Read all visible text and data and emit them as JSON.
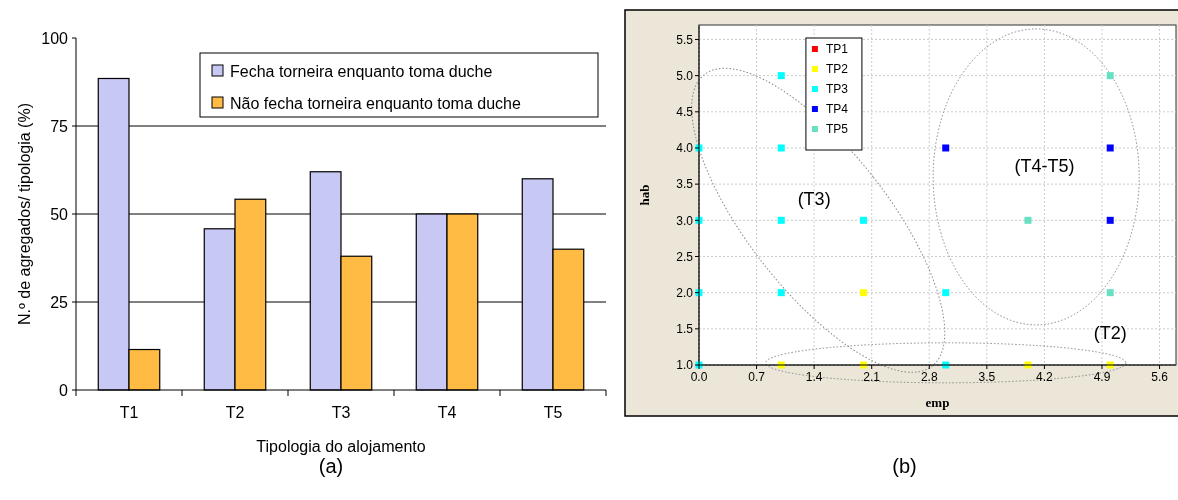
{
  "chart_data": [
    {
      "type": "bar",
      "title": "(a)",
      "xlabel": "Tipologia do alojamento",
      "ylabel": "N.º de agregados/ tipologia  (%)",
      "categories": [
        "T1",
        "T2",
        "T3",
        "T4",
        "T5"
      ],
      "series": [
        {
          "name": "Fecha torneira enquanto toma duche",
          "color": "#c8c8f5",
          "values": [
            88.5,
            45.8,
            62,
            50,
            60
          ]
        },
        {
          "name": "Não fecha torneira enquanto toma duche",
          "color": "#ffbb44",
          "values": [
            11.5,
            54.2,
            38,
            50,
            40
          ]
        }
      ],
      "ylim": [
        0,
        100
      ],
      "yticks": [
        0,
        25,
        50,
        75,
        100
      ],
      "grid": "y",
      "legend": "top right"
    },
    {
      "type": "scatter",
      "title": "(b)",
      "xlabel": "emp",
      "ylabel": "hab",
      "marker": "square",
      "grid": true,
      "legend": "top left",
      "xlim": [
        0,
        5.8
      ],
      "xticks": [
        {
          "value": 0,
          "label": "0.0"
        },
        0.7,
        1.4,
        2.1,
        2.8,
        3.5,
        4.2,
        4.9,
        5.6
      ],
      "ylim": [
        1,
        5.7
      ],
      "yticks": [
        {
          "value": 1,
          "label": "1.0"
        },
        1.5,
        {
          "value": 2,
          "label": "2.0"
        },
        2.5,
        {
          "value": 3,
          "label": "3.0"
        },
        3.5,
        {
          "value": 4,
          "label": "4.0"
        },
        4.5,
        {
          "value": 5,
          "label": "5.0"
        },
        5.5
      ],
      "series": [
        {
          "name": "TP1",
          "color": "#ff0000"
        },
        {
          "name": "TP2",
          "color": "#ffff00",
          "x": [
            1,
            2,
            2,
            4,
            5
          ],
          "values": [
            1,
            1,
            2,
            1,
            1
          ]
        },
        {
          "name": "TP3",
          "color": "#00ffff",
          "x": [
            1,
            0,
            1,
            0,
            1,
            2,
            0,
            1,
            3,
            0,
            3
          ],
          "values": [
            5,
            4,
            4,
            3,
            3,
            3,
            2,
            2,
            2,
            1,
            1
          ]
        },
        {
          "name": "TP4",
          "color": "#0000ff",
          "x": [
            3,
            5,
            5
          ],
          "values": [
            4,
            4,
            3
          ]
        },
        {
          "name": "TP5",
          "color": "#66e0c0",
          "x": [
            5,
            4,
            5
          ],
          "values": [
            5,
            3,
            2
          ]
        }
      ],
      "annotations": [
        "(T3)",
        "(T4-T5)",
        "(T2)"
      ]
    }
  ]
}
